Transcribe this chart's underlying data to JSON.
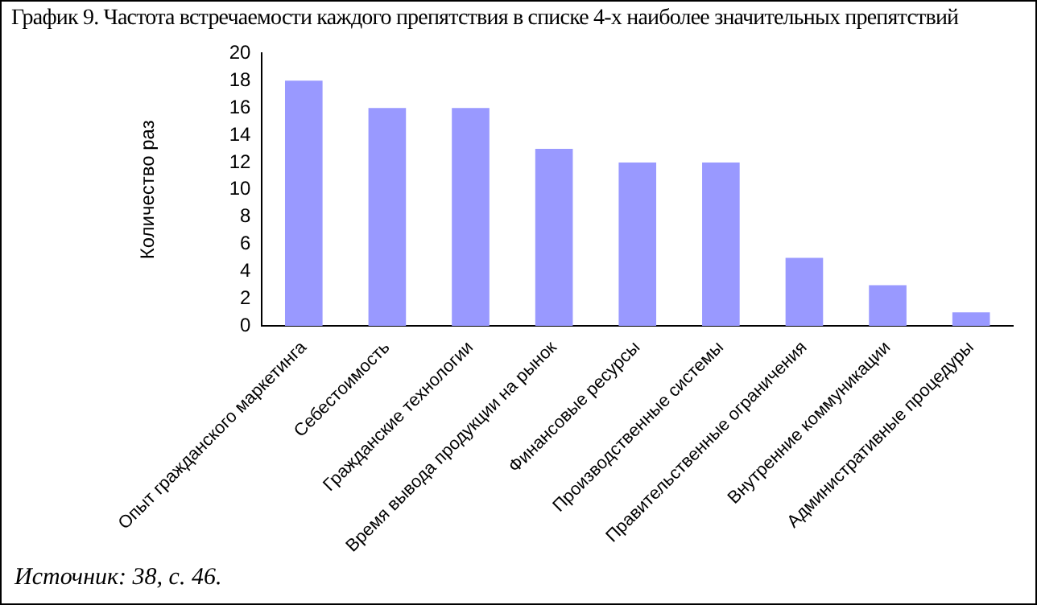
{
  "chart_data": {
    "type": "bar",
    "title": "График 9. Частота встречаемости каждого препятствия в списке 4-х наиболее значительных препятствий",
    "ylabel": "Количество раз",
    "categories": [
      "Опыт гражданского маркетинга",
      "Себестоимость",
      "Гражданские технологии",
      "Время вывода продукции на рынок",
      "Финансовые ресурсы",
      "Производственные системы",
      "Правительственные ограничения",
      "Внутренние коммуникации",
      "Административные процедуры"
    ],
    "values": [
      18,
      16,
      16,
      13,
      12,
      12,
      5,
      3,
      1
    ],
    "color": "#9999ff",
    "ylim": [
      0,
      20
    ],
    "yticks": [
      0,
      2,
      4,
      6,
      8,
      10,
      12,
      14,
      16,
      18,
      20
    ],
    "annotations": [
      "Источник: 38, с. 46."
    ]
  }
}
